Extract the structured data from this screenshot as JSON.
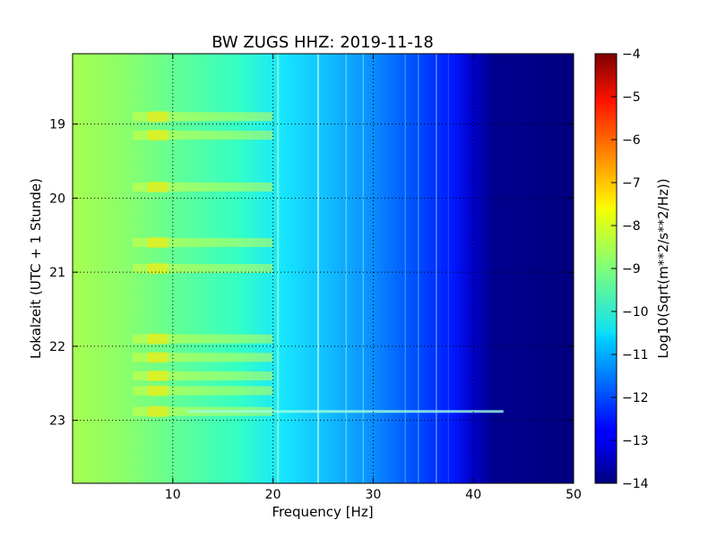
{
  "chart_data": {
    "type": "heatmap",
    "title": "BW ZUGS HHZ: 2019-11-18",
    "xlabel": "Frequency [Hz]",
    "ylabel": "Lokalzeit (UTC + 1 Stunde)",
    "xlim": [
      0,
      50
    ],
    "ylim": [
      18.05,
      23.85
    ],
    "xticks": [
      10,
      20,
      30,
      40,
      50
    ],
    "yticks": [
      19,
      20,
      21,
      22,
      23
    ],
    "grid": true,
    "colormap": "jet",
    "colorbar": {
      "label": "Log10(Sqrt(m**2/s**2/Hz))",
      "min": -14,
      "max": -4,
      "ticks": [
        -4,
        -5,
        -6,
        -7,
        -8,
        -9,
        -10,
        -11,
        -12,
        -13,
        -14
      ]
    },
    "spectrum_profile_log10": [
      {
        "hz": 0,
        "value": -9.0
      },
      {
        "hz": 5,
        "value": -9.1
      },
      {
        "hz": 10,
        "value": -9.4
      },
      {
        "hz": 15,
        "value": -9.8
      },
      {
        "hz": 20,
        "value": -10.2
      },
      {
        "hz": 25,
        "value": -10.7
      },
      {
        "hz": 30,
        "value": -11.1
      },
      {
        "hz": 35,
        "value": -11.8
      },
      {
        "hz": 38,
        "value": -12.6
      },
      {
        "hz": 40,
        "value": -13.5
      },
      {
        "hz": 42,
        "value": -14.0
      },
      {
        "hz": 50,
        "value": -14.0
      }
    ],
    "bright_bands_hours": [
      18.9,
      19.15,
      19.85,
      20.6,
      20.95,
      21.9,
      22.15,
      22.4,
      22.6,
      22.88
    ]
  }
}
